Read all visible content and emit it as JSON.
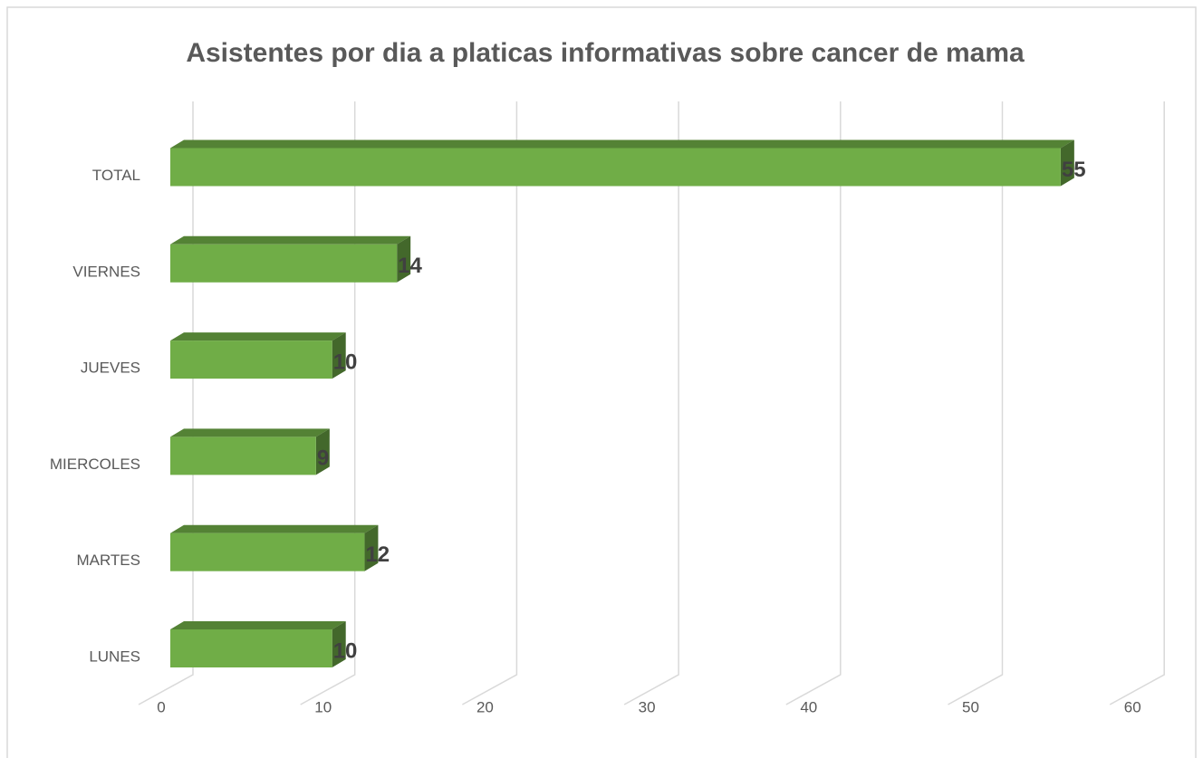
{
  "chart_data": {
    "type": "bar3d",
    "orientation": "horizontal",
    "title": "Asistentes por dia a platicas informativas sobre cancer de mama",
    "categories": [
      "LUNES",
      "MARTES",
      "MIERCOLES",
      "JUEVES",
      "VIERNES",
      "TOTAL"
    ],
    "values": [
      10,
      12,
      9,
      10,
      14,
      55
    ],
    "color": "#70ad47",
    "xlim": [
      0,
      60
    ],
    "xticks": [
      0,
      10,
      20,
      30,
      40,
      50,
      60
    ],
    "grid": true
  }
}
